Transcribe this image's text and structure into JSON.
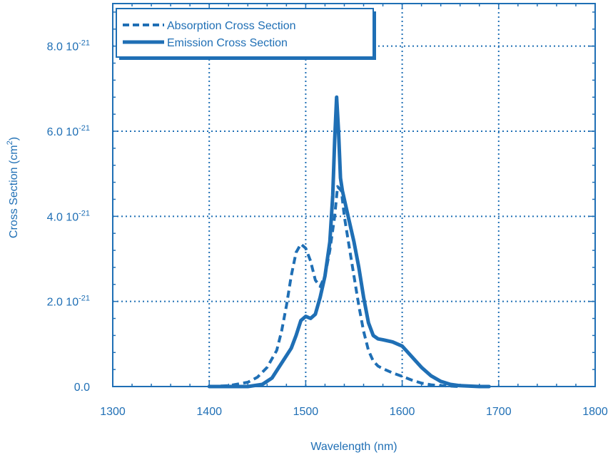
{
  "chart_data": {
    "type": "line",
    "title": "",
    "xlabel": "Wavelength (nm)",
    "ylabel": {
      "main": "Cross Section (cm",
      "sup": "2",
      "close": ")"
    },
    "xlim": [
      1300,
      1800
    ],
    "ylim": [
      0,
      9e-21
    ],
    "x_ticks": [
      1300,
      1400,
      1500,
      1600,
      1700,
      1800
    ],
    "x_tick_labels": [
      "1300",
      "1400",
      "1500",
      "1600",
      "1700",
      "1800"
    ],
    "y_ticks": [
      0,
      2e-21,
      4e-21,
      6e-21,
      8e-21
    ],
    "y_tick_labels": [
      {
        "base": "0.0",
        "exp": ""
      },
      {
        "base": "2.0 10",
        "exp": "-21"
      },
      {
        "base": "4.0 10",
        "exp": "-21"
      },
      {
        "base": "6.0 10",
        "exp": "-21"
      },
      {
        "base": "8.0 10",
        "exp": "-21"
      }
    ],
    "grid": true,
    "grid_style": "dotted",
    "legend_position": "top-left",
    "colors": {
      "primary": "#1f6fb5",
      "background": "#ffffff"
    },
    "series": [
      {
        "name": "Absorption Cross Section",
        "style": "dashed",
        "x": [
          1400,
          1420,
          1440,
          1450,
          1460,
          1470,
          1475,
          1480,
          1485,
          1490,
          1495,
          1500,
          1505,
          1510,
          1515,
          1520,
          1525,
          1530,
          1533,
          1537,
          1540,
          1545,
          1550,
          1555,
          1560,
          1565,
          1570,
          1575,
          1580,
          1590,
          1600,
          1610,
          1620,
          1630,
          1640,
          1650,
          1660
        ],
        "y": [
          0.0,
          2e-23,
          1e-22,
          2.2e-22,
          4.5e-22,
          8.5e-22,
          1.3e-21,
          1.9e-21,
          2.6e-21,
          3.15e-21,
          3.35e-21,
          3.25e-21,
          2.95e-21,
          2.5e-21,
          2.35e-21,
          2.6e-21,
          3.2e-21,
          4e-21,
          4.7e-21,
          4.6e-21,
          4e-21,
          3.3e-21,
          2.6e-21,
          1.9e-21,
          1.3e-21,
          8.5e-22,
          6e-22,
          4.8e-22,
          4.2e-22,
          3.2e-22,
          2.4e-22,
          1.5e-22,
          8e-23,
          4e-23,
          2e-23,
          1e-23,
          0.0
        ]
      },
      {
        "name": "Emission Cross Section",
        "style": "solid",
        "x": [
          1400,
          1440,
          1455,
          1465,
          1475,
          1485,
          1490,
          1495,
          1500,
          1505,
          1510,
          1515,
          1520,
          1525,
          1528,
          1530,
          1532,
          1534,
          1536,
          1538,
          1540,
          1545,
          1550,
          1555,
          1560,
          1565,
          1570,
          1575,
          1580,
          1590,
          1600,
          1610,
          1620,
          1630,
          1640,
          1650,
          1660,
          1670,
          1680,
          1690
        ],
        "y": [
          0.0,
          0.0,
          5e-23,
          2e-22,
          5.5e-22,
          9e-22,
          1.2e-21,
          1.55e-21,
          1.65e-21,
          1.6e-21,
          1.7e-21,
          2.1e-21,
          2.6e-21,
          3.4e-21,
          4.5e-21,
          5.8e-21,
          6.8e-21,
          6e-21,
          4.9e-21,
          4.6e-21,
          4.4e-21,
          3.9e-21,
          3.4e-21,
          2.8e-21,
          2.1e-21,
          1.5e-21,
          1.2e-21,
          1.12e-21,
          1.1e-21,
          1.05e-21,
          9.5e-22,
          7e-22,
          4.5e-22,
          2.5e-22,
          1.2e-22,
          5e-23,
          2e-23,
          1e-23,
          0.0,
          0.0
        ]
      }
    ]
  }
}
